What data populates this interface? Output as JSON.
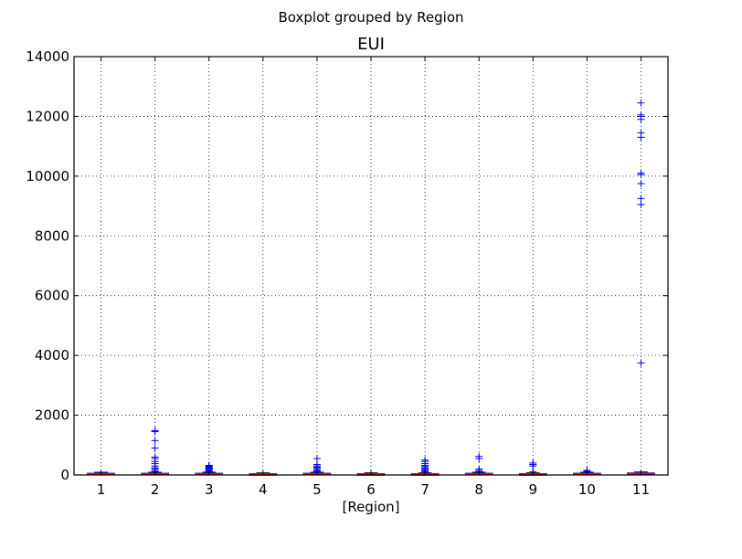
{
  "chart_data": {
    "type": "box",
    "suptitle": "Boxplot grouped by Region",
    "title": "EUI",
    "xlabel": "[Region]",
    "ylabel": "",
    "categories": [
      "1",
      "2",
      "3",
      "4",
      "5",
      "6",
      "7",
      "8",
      "9",
      "10",
      "11"
    ],
    "ylim": [
      0,
      14000
    ],
    "yticks": [
      0,
      2000,
      4000,
      6000,
      8000,
      10000,
      12000,
      14000
    ],
    "grid": true,
    "colors": {
      "box": "#0000ff",
      "median": "#ff0000",
      "flier": "#0000ff",
      "grid": "#000000"
    },
    "boxes": [
      {
        "region": "1",
        "q1": 20,
        "median": 35,
        "q3": 55,
        "whisker_low": 0,
        "whisker_high": 90,
        "outliers": []
      },
      {
        "region": "2",
        "q1": 20,
        "median": 35,
        "q3": 55,
        "whisker_low": 0,
        "whisker_high": 90,
        "outliers": [
          110,
          150,
          200,
          240,
          300,
          380,
          450,
          550,
          600,
          900,
          1150,
          1450,
          1480
        ]
      },
      {
        "region": "3",
        "q1": 20,
        "median": 35,
        "q3": 55,
        "whisker_low": 0,
        "whisker_high": 90,
        "outliers": [
          110,
          140,
          170,
          200,
          230,
          260,
          290,
          320
        ]
      },
      {
        "region": "4",
        "q1": 15,
        "median": 25,
        "q3": 40,
        "whisker_low": 0,
        "whisker_high": 70,
        "outliers": []
      },
      {
        "region": "5",
        "q1": 20,
        "median": 35,
        "q3": 55,
        "whisker_low": 0,
        "whisker_high": 90,
        "outliers": [
          110,
          140,
          180,
          220,
          260,
          300,
          350,
          550
        ]
      },
      {
        "region": "6",
        "q1": 15,
        "median": 25,
        "q3": 40,
        "whisker_low": 0,
        "whisker_high": 70,
        "outliers": []
      },
      {
        "region": "7",
        "q1": 15,
        "median": 25,
        "q3": 40,
        "whisker_low": 0,
        "whisker_high": 70,
        "outliers": [
          100,
          130,
          160,
          200,
          240,
          280,
          320,
          380,
          450,
          500
        ]
      },
      {
        "region": "8",
        "q1": 20,
        "median": 35,
        "q3": 55,
        "whisker_low": 0,
        "whisker_high": 90,
        "outliers": [
          110,
          150,
          200,
          550,
          620
        ]
      },
      {
        "region": "9",
        "q1": 15,
        "median": 25,
        "q3": 40,
        "whisker_low": 0,
        "whisker_high": 70,
        "outliers": [
          100,
          300,
          350,
          400
        ]
      },
      {
        "region": "10",
        "q1": 20,
        "median": 35,
        "q3": 55,
        "whisker_low": 0,
        "whisker_high": 90,
        "outliers": [
          110,
          130,
          150
        ]
      },
      {
        "region": "11",
        "q1": 25,
        "median": 45,
        "q3": 65,
        "whisker_low": 0,
        "whisker_high": 100,
        "outliers": [
          3750,
          9050,
          9250,
          9750,
          10050,
          10100,
          11300,
          11450,
          11900,
          12000,
          12050,
          12450
        ]
      }
    ]
  }
}
